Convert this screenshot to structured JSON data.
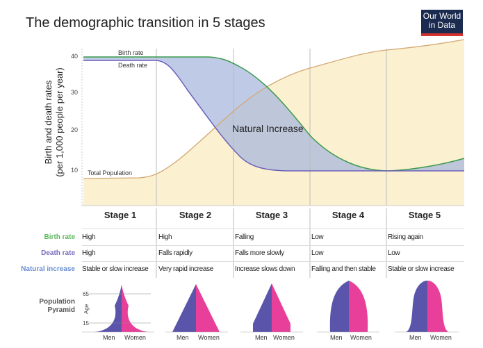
{
  "title": "The demographic transition in 5 stages",
  "logo": "Our World in Data",
  "y_axis": {
    "label_line1": "Birth and death rates",
    "label_line2": "(per 1,000 people per year)",
    "ticks": [
      "40",
      "30",
      "20",
      "10"
    ]
  },
  "series_labels": {
    "birth": "Birth rate",
    "death": "Death rate",
    "population": "Total Population",
    "natural": "Natural Increase"
  },
  "colors": {
    "birth": "#3a9a4a",
    "death": "#6a5fb8",
    "population": "#d2a874",
    "natural_fill": "#b9c6e4",
    "population_fill": "#fbf0d0",
    "men": "#5a55ab",
    "women": "#e8409a"
  },
  "stages": [
    "Stage 1",
    "Stage 2",
    "Stage 3",
    "Stage 4",
    "Stage 5"
  ],
  "rows": [
    {
      "label": "Birth rate",
      "color": "#5cb85c",
      "cells": [
        "High",
        "High",
        "Falling",
        "Low",
        "Rising again"
      ]
    },
    {
      "label": "Death rate",
      "color": "#7a6cc0",
      "cells": [
        "High",
        "Falls rapidly",
        "Falls more slowly",
        "Low",
        "Low"
      ]
    },
    {
      "label": "Natural increase",
      "color": "#6a8fd0",
      "cells": [
        "Stable or slow increase",
        "Very rapid increase",
        "Increase slows down",
        "Falling and then stable",
        "Stable or slow increase"
      ]
    }
  ],
  "pyramid": {
    "label_line1": "Population",
    "label_line2": "Pyramid",
    "age": "Age",
    "age65": "65",
    "age15": "15",
    "men": "Men",
    "women": "Women"
  }
}
